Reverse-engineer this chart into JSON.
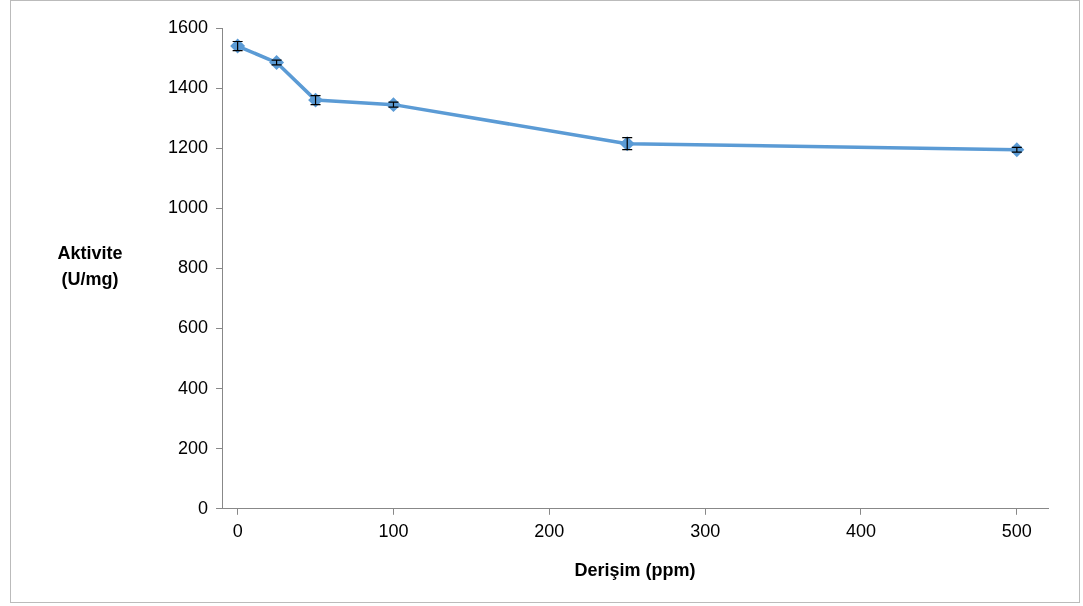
{
  "chart_data": {
    "type": "line",
    "xlabel": "Derişim (ppm)",
    "ylabel": "Aktivite (U/mg)",
    "x": [
      0,
      25,
      50,
      100,
      250,
      500
    ],
    "series": [
      {
        "color": "#5b9bd5",
        "values": [
          1540,
          1485,
          1360,
          1345,
          1215,
          1195
        ],
        "errors": [
          15,
          8,
          15,
          8,
          20,
          8
        ]
      }
    ],
    "xlim": [
      -10,
      520
    ],
    "xticks": [
      0,
      100,
      200,
      300,
      400,
      500
    ],
    "ylim": [
      0,
      1600
    ],
    "yticks": [
      0,
      200,
      400,
      600,
      800,
      1000,
      1200,
      1400,
      1600
    ],
    "grid": false,
    "legend": false,
    "marker": "diamond",
    "line_style": "solid"
  }
}
